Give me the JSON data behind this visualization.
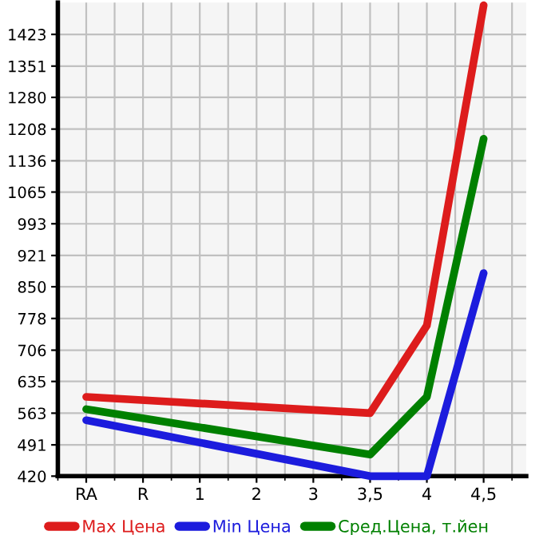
{
  "chart_data": {
    "type": "line",
    "categories": [
      "RA",
      "R",
      "1",
      "2",
      "3",
      "3,5",
      "4",
      "4,5"
    ],
    "series": [
      {
        "name": "Max Цена",
        "color": "#dd1c1c",
        "values": [
          600,
          null,
          null,
          null,
          null,
          563,
          762,
          1489
        ]
      },
      {
        "name": "Min Цена",
        "color": "#1c1cdd",
        "values": [
          547,
          null,
          null,
          null,
          null,
          420,
          420,
          881
        ]
      },
      {
        "name": "Сред.Цена, т.йен",
        "color": "#008000",
        "values": [
          572,
          null,
          null,
          null,
          null,
          469,
          600,
          1186
        ]
      }
    ],
    "ylim": [
      420,
      1495
    ],
    "yticks": [
      420,
      491,
      563,
      635,
      706,
      778,
      850,
      921,
      993,
      1065,
      1136,
      1208,
      1280,
      1351,
      1423
    ],
    "grid": true,
    "legend": "bottom",
    "marker": "none",
    "line_style": "solid"
  }
}
